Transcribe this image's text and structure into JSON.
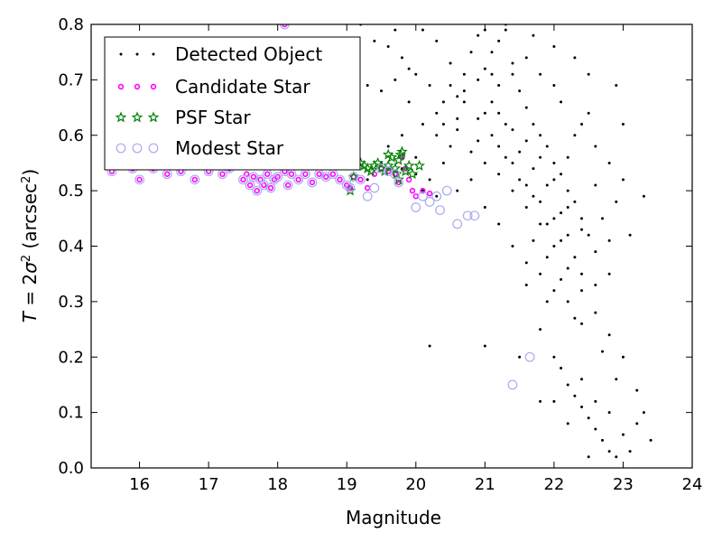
{
  "chart_data": {
    "type": "scatter",
    "xlabel": "Magnitude",
    "ylabel_parts": {
      "italic_T": "T",
      "eq": " = 2",
      "sigma": "σ",
      "sup2": "2",
      "units": " (arcsec",
      "units_sup": "2",
      "close": ")"
    },
    "xlim": [
      15.3,
      24
    ],
    "ylim": [
      0.0,
      0.8
    ],
    "xticks": [
      "16",
      "17",
      "18",
      "19",
      "20",
      "21",
      "22",
      "23",
      "24"
    ],
    "yticks": [
      "0.0",
      "0.1",
      "0.2",
      "0.3",
      "0.4",
      "0.5",
      "0.6",
      "0.7",
      "0.8"
    ],
    "legend_position": "top-left",
    "series": [
      {
        "name": "Detected Object",
        "marker": "dot",
        "color": "#000000",
        "points": [
          [
            19.5,
            0.55
          ],
          [
            19.8,
            0.54
          ],
          [
            20.0,
            0.53
          ],
          [
            20.2,
            0.52
          ],
          [
            20.3,
            0.6
          ],
          [
            20.5,
            0.58
          ],
          [
            20.6,
            0.63
          ],
          [
            20.7,
            0.66
          ],
          [
            20.9,
            0.7
          ],
          [
            21.0,
            0.72
          ],
          [
            21.1,
            0.75
          ],
          [
            21.2,
            0.77
          ],
          [
            21.3,
            0.79
          ],
          [
            21.4,
            0.71
          ],
          [
            21.5,
            0.68
          ],
          [
            21.6,
            0.65
          ],
          [
            21.7,
            0.62
          ],
          [
            21.8,
            0.6
          ],
          [
            21.9,
            0.58
          ],
          [
            22.0,
            0.55
          ],
          [
            22.1,
            0.53
          ],
          [
            22.2,
            0.5
          ],
          [
            22.3,
            0.48
          ],
          [
            22.4,
            0.45
          ],
          [
            22.5,
            0.42
          ],
          [
            21.2,
            0.64
          ],
          [
            21.4,
            0.61
          ],
          [
            21.6,
            0.59
          ],
          [
            21.8,
            0.56
          ],
          [
            22.0,
            0.52
          ],
          [
            22.2,
            0.47
          ],
          [
            22.4,
            0.43
          ],
          [
            22.6,
            0.39
          ],
          [
            22.8,
            0.35
          ],
          [
            22.1,
            0.41
          ],
          [
            21.9,
            0.44
          ],
          [
            21.7,
            0.49
          ],
          [
            21.5,
            0.52
          ],
          [
            21.3,
            0.56
          ],
          [
            21.1,
            0.6
          ],
          [
            20.9,
            0.63
          ],
          [
            20.7,
            0.68
          ],
          [
            20.5,
            0.73
          ],
          [
            20.3,
            0.77
          ],
          [
            20.1,
            0.79
          ],
          [
            19.9,
            0.72
          ],
          [
            19.7,
            0.7
          ],
          [
            19.5,
            0.68
          ],
          [
            19.3,
            0.69
          ],
          [
            19.1,
            0.66
          ],
          [
            19.6,
            0.76
          ],
          [
            19.8,
            0.74
          ],
          [
            20.0,
            0.71
          ],
          [
            20.2,
            0.69
          ],
          [
            20.4,
            0.66
          ],
          [
            20.6,
            0.61
          ],
          [
            20.8,
            0.57
          ],
          [
            21.0,
            0.55
          ],
          [
            21.2,
            0.53
          ],
          [
            21.4,
            0.5
          ],
          [
            21.6,
            0.47
          ],
          [
            21.8,
            0.44
          ],
          [
            22.0,
            0.4
          ],
          [
            22.2,
            0.36
          ],
          [
            22.4,
            0.32
          ],
          [
            22.6,
            0.28
          ],
          [
            22.8,
            0.24
          ],
          [
            23.0,
            0.2
          ],
          [
            23.2,
            0.14
          ],
          [
            23.4,
            0.05
          ],
          [
            22.0,
            0.2
          ],
          [
            22.1,
            0.18
          ],
          [
            22.2,
            0.15
          ],
          [
            22.3,
            0.13
          ],
          [
            22.4,
            0.11
          ],
          [
            22.5,
            0.09
          ],
          [
            22.6,
            0.07
          ],
          [
            22.7,
            0.05
          ],
          [
            22.8,
            0.03
          ],
          [
            22.9,
            0.02
          ],
          [
            21.8,
            0.25
          ],
          [
            22.0,
            0.12
          ],
          [
            22.2,
            0.08
          ],
          [
            22.4,
            0.16
          ],
          [
            22.6,
            0.12
          ],
          [
            22.8,
            0.1
          ],
          [
            23.0,
            0.06
          ],
          [
            23.2,
            0.08
          ],
          [
            23.1,
            0.03
          ],
          [
            22.5,
            0.02
          ],
          [
            21.0,
            0.22
          ],
          [
            20.2,
            0.22
          ],
          [
            21.5,
            0.2
          ],
          [
            21.8,
            0.12
          ],
          [
            21.6,
            0.33
          ],
          [
            21.9,
            0.3
          ],
          [
            22.3,
            0.27
          ],
          [
            22.7,
            0.21
          ],
          [
            22.9,
            0.16
          ],
          [
            23.3,
            0.1
          ],
          [
            21.3,
            0.8
          ],
          [
            21.7,
            0.78
          ],
          [
            22.0,
            0.76
          ],
          [
            22.3,
            0.74
          ],
          [
            22.5,
            0.71
          ],
          [
            22.1,
            0.66
          ],
          [
            22.4,
            0.62
          ],
          [
            22.6,
            0.58
          ],
          [
            22.8,
            0.55
          ],
          [
            23.0,
            0.52
          ],
          [
            22.9,
            0.69
          ],
          [
            23.0,
            0.62
          ],
          [
            22.9,
            0.48
          ],
          [
            23.1,
            0.42
          ],
          [
            23.3,
            0.49
          ],
          [
            21.2,
            0.69
          ],
          [
            21.4,
            0.73
          ],
          [
            21.6,
            0.74
          ],
          [
            21.8,
            0.71
          ],
          [
            22.0,
            0.69
          ],
          [
            20.6,
            0.5
          ],
          [
            20.8,
            0.52
          ],
          [
            21.0,
            0.47
          ],
          [
            21.2,
            0.44
          ],
          [
            21.4,
            0.4
          ],
          [
            21.6,
            0.37
          ],
          [
            21.8,
            0.35
          ],
          [
            22.0,
            0.32
          ],
          [
            22.2,
            0.3
          ],
          [
            22.4,
            0.26
          ],
          [
            20.4,
            0.62
          ],
          [
            20.6,
            0.67
          ],
          [
            20.8,
            0.75
          ],
          [
            21.0,
            0.79
          ],
          [
            21.1,
            0.66
          ],
          [
            21.3,
            0.62
          ],
          [
            21.5,
            0.57
          ],
          [
            21.7,
            0.54
          ],
          [
            21.9,
            0.51
          ],
          [
            22.1,
            0.46
          ],
          [
            19.2,
            0.8
          ],
          [
            19.4,
            0.77
          ],
          [
            19.7,
            0.79
          ],
          [
            19.9,
            0.66
          ],
          [
            20.1,
            0.62
          ],
          [
            20.3,
            0.64
          ],
          [
            20.5,
            0.69
          ],
          [
            20.7,
            0.71
          ],
          [
            20.9,
            0.78
          ],
          [
            21.1,
            0.71
          ],
          [
            22.2,
            0.56
          ],
          [
            22.3,
            0.6
          ],
          [
            22.5,
            0.64
          ],
          [
            22.6,
            0.51
          ],
          [
            22.7,
            0.45
          ],
          [
            22.8,
            0.41
          ],
          [
            22.3,
            0.38
          ],
          [
            22.1,
            0.34
          ],
          [
            21.9,
            0.38
          ],
          [
            21.7,
            0.41
          ],
          [
            20.9,
            0.59
          ],
          [
            21.0,
            0.64
          ],
          [
            21.2,
            0.58
          ],
          [
            21.4,
            0.55
          ],
          [
            21.6,
            0.51
          ],
          [
            21.8,
            0.48
          ],
          [
            22.0,
            0.45
          ],
          [
            22.2,
            0.42
          ],
          [
            22.4,
            0.35
          ],
          [
            22.6,
            0.33
          ],
          [
            18.5,
            0.58
          ],
          [
            18.8,
            0.55
          ],
          [
            19.0,
            0.54
          ],
          [
            19.3,
            0.52
          ],
          [
            19.6,
            0.58
          ],
          [
            19.8,
            0.6
          ],
          [
            20.0,
            0.56
          ],
          [
            20.4,
            0.55
          ],
          [
            20.1,
            0.5
          ],
          [
            20.3,
            0.49
          ]
        ]
      },
      {
        "name": "Candidate Star",
        "marker": "circle-small",
        "color": "#ff00ff",
        "points": [
          [
            15.6,
            0.535
          ],
          [
            15.9,
            0.54
          ],
          [
            16.0,
            0.52
          ],
          [
            16.2,
            0.54
          ],
          [
            16.4,
            0.53
          ],
          [
            16.6,
            0.535
          ],
          [
            16.8,
            0.52
          ],
          [
            17.0,
            0.535
          ],
          [
            17.2,
            0.53
          ],
          [
            17.3,
            0.54
          ],
          [
            17.5,
            0.52
          ],
          [
            17.6,
            0.51
          ],
          [
            17.65,
            0.525
          ],
          [
            17.7,
            0.5
          ],
          [
            17.75,
            0.52
          ],
          [
            17.8,
            0.51
          ],
          [
            17.85,
            0.53
          ],
          [
            17.9,
            0.505
          ],
          [
            17.95,
            0.52
          ],
          [
            18.0,
            0.525
          ],
          [
            18.1,
            0.535
          ],
          [
            18.15,
            0.51
          ],
          [
            18.2,
            0.53
          ],
          [
            18.3,
            0.52
          ],
          [
            18.4,
            0.53
          ],
          [
            18.5,
            0.515
          ],
          [
            18.6,
            0.53
          ],
          [
            18.7,
            0.525
          ],
          [
            18.8,
            0.53
          ],
          [
            18.9,
            0.52
          ],
          [
            19.0,
            0.51
          ],
          [
            19.05,
            0.505
          ],
          [
            19.1,
            0.525
          ],
          [
            19.2,
            0.52
          ],
          [
            19.3,
            0.505
          ],
          [
            19.4,
            0.53
          ],
          [
            19.5,
            0.54
          ],
          [
            19.6,
            0.535
          ],
          [
            19.7,
            0.53
          ],
          [
            19.75,
            0.515
          ],
          [
            19.8,
            0.56
          ],
          [
            19.85,
            0.54
          ],
          [
            19.9,
            0.52
          ],
          [
            19.95,
            0.5
          ],
          [
            20.0,
            0.49
          ],
          [
            20.1,
            0.5
          ],
          [
            20.2,
            0.495
          ],
          [
            18.1,
            0.8
          ],
          [
            17.4,
            0.545
          ],
          [
            17.55,
            0.53
          ]
        ]
      },
      {
        "name": "PSF Star",
        "marker": "star",
        "color": "#008000",
        "points": [
          [
            19.05,
            0.5
          ],
          [
            19.1,
            0.525
          ],
          [
            19.15,
            0.545
          ],
          [
            19.2,
            0.55
          ],
          [
            19.3,
            0.54
          ],
          [
            19.35,
            0.535
          ],
          [
            19.4,
            0.545
          ],
          [
            19.45,
            0.55
          ],
          [
            19.5,
            0.54
          ],
          [
            19.55,
            0.535
          ],
          [
            19.6,
            0.545
          ],
          [
            19.65,
            0.56
          ],
          [
            19.7,
            0.54
          ],
          [
            19.72,
            0.53
          ],
          [
            19.75,
            0.52
          ],
          [
            19.78,
            0.565
          ],
          [
            19.8,
            0.57
          ],
          [
            19.85,
            0.535
          ],
          [
            19.9,
            0.545
          ],
          [
            19.95,
            0.53
          ],
          [
            20.05,
            0.545
          ],
          [
            19.25,
            0.545
          ],
          [
            19.6,
            0.565
          ],
          [
            19.75,
            0.555
          ]
        ]
      },
      {
        "name": "Modest Star",
        "marker": "circle-open",
        "color": "#aaaaee",
        "points": [
          [
            15.6,
            0.535
          ],
          [
            15.9,
            0.54
          ],
          [
            16.0,
            0.52
          ],
          [
            16.2,
            0.54
          ],
          [
            16.4,
            0.53
          ],
          [
            16.6,
            0.535
          ],
          [
            16.8,
            0.52
          ],
          [
            17.0,
            0.535
          ],
          [
            17.2,
            0.53
          ],
          [
            17.3,
            0.54
          ],
          [
            17.5,
            0.52
          ],
          [
            17.6,
            0.51
          ],
          [
            17.65,
            0.525
          ],
          [
            17.7,
            0.5
          ],
          [
            17.75,
            0.52
          ],
          [
            17.8,
            0.51
          ],
          [
            17.85,
            0.53
          ],
          [
            17.9,
            0.505
          ],
          [
            17.95,
            0.52
          ],
          [
            18.0,
            0.525
          ],
          [
            18.1,
            0.535
          ],
          [
            18.15,
            0.51
          ],
          [
            18.2,
            0.53
          ],
          [
            18.3,
            0.52
          ],
          [
            18.4,
            0.53
          ],
          [
            18.5,
            0.515
          ],
          [
            18.6,
            0.53
          ],
          [
            18.7,
            0.525
          ],
          [
            18.8,
            0.53
          ],
          [
            18.9,
            0.52
          ],
          [
            19.0,
            0.51
          ],
          [
            19.05,
            0.505
          ],
          [
            19.1,
            0.525
          ],
          [
            19.2,
            0.52
          ],
          [
            19.3,
            0.49
          ],
          [
            19.4,
            0.505
          ],
          [
            19.5,
            0.54
          ],
          [
            19.6,
            0.535
          ],
          [
            19.7,
            0.53
          ],
          [
            19.75,
            0.515
          ],
          [
            20.0,
            0.47
          ],
          [
            20.1,
            0.49
          ],
          [
            20.2,
            0.48
          ],
          [
            20.3,
            0.49
          ],
          [
            20.35,
            0.465
          ],
          [
            20.45,
            0.5
          ],
          [
            20.6,
            0.44
          ],
          [
            20.75,
            0.455
          ],
          [
            20.85,
            0.455
          ],
          [
            21.4,
            0.15
          ],
          [
            21.65,
            0.2
          ],
          [
            18.1,
            0.8
          ]
        ]
      }
    ]
  }
}
